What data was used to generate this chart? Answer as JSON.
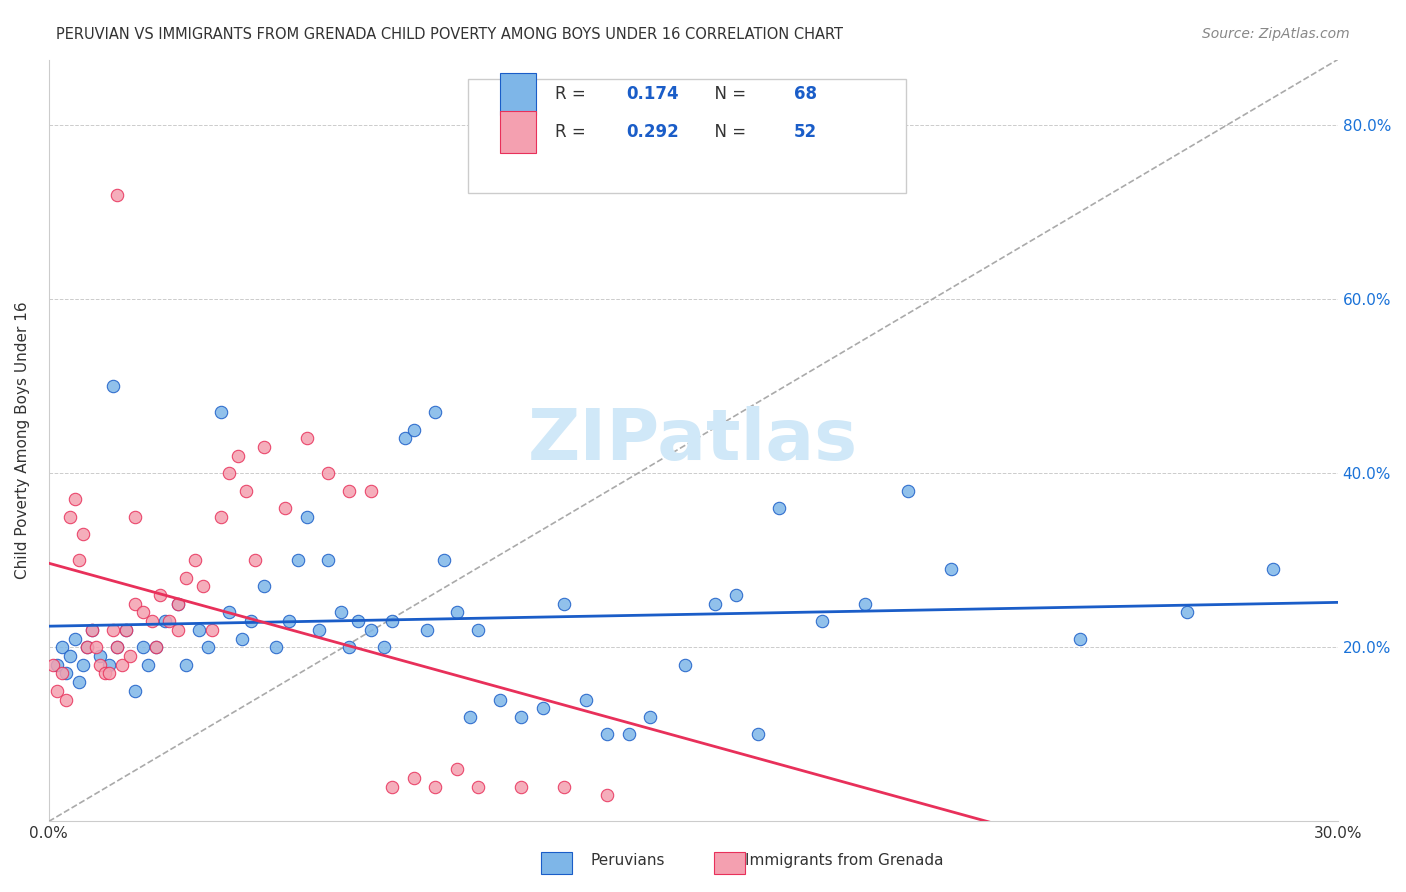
{
  "title": "PERUVIAN VS IMMIGRANTS FROM GRENADA CHILD POVERTY AMONG BOYS UNDER 16 CORRELATION CHART",
  "source": "Source: ZipAtlas.com",
  "xlabel": "",
  "ylabel": "Child Poverty Among Boys Under 16",
  "xlim": [
    0.0,
    0.3
  ],
  "ylim": [
    0.0,
    0.875
  ],
  "xticks": [
    0.0,
    0.3
  ],
  "xticklabels": [
    "0.0%",
    "30.0%"
  ],
  "right_yticks": [
    0.2,
    0.4,
    0.6,
    0.8
  ],
  "right_yticklabels": [
    "20.0%",
    "40.0%",
    "60.0%",
    "80.0%"
  ],
  "legend_r1": "R =  0.174",
  "legend_n1": "N = 68",
  "legend_r2": "R =  0.292",
  "legend_n2": "N = 52",
  "blue_color": "#7EB6E8",
  "pink_color": "#F4A0B0",
  "blue_line_color": "#1A5DC8",
  "pink_line_color": "#E8305A",
  "watermark": "ZIPatlas",
  "watermark_color": "#D0E8F8",
  "blue_scatter_x": [
    0.002,
    0.003,
    0.004,
    0.005,
    0.006,
    0.007,
    0.008,
    0.009,
    0.01,
    0.012,
    0.014,
    0.015,
    0.016,
    0.018,
    0.02,
    0.022,
    0.023,
    0.025,
    0.027,
    0.03,
    0.032,
    0.035,
    0.037,
    0.04,
    0.042,
    0.045,
    0.047,
    0.05,
    0.053,
    0.056,
    0.058,
    0.06,
    0.063,
    0.065,
    0.068,
    0.07,
    0.072,
    0.075,
    0.078,
    0.08,
    0.083,
    0.085,
    0.088,
    0.09,
    0.092,
    0.095,
    0.098,
    0.1,
    0.105,
    0.11,
    0.115,
    0.12,
    0.125,
    0.13,
    0.135,
    0.14,
    0.148,
    0.155,
    0.16,
    0.165,
    0.17,
    0.18,
    0.19,
    0.2,
    0.21,
    0.24,
    0.265,
    0.285
  ],
  "blue_scatter_y": [
    0.18,
    0.2,
    0.17,
    0.19,
    0.21,
    0.16,
    0.18,
    0.2,
    0.22,
    0.19,
    0.18,
    0.5,
    0.2,
    0.22,
    0.15,
    0.2,
    0.18,
    0.2,
    0.23,
    0.25,
    0.18,
    0.22,
    0.2,
    0.47,
    0.24,
    0.21,
    0.23,
    0.27,
    0.2,
    0.23,
    0.3,
    0.35,
    0.22,
    0.3,
    0.24,
    0.2,
    0.23,
    0.22,
    0.2,
    0.23,
    0.44,
    0.45,
    0.22,
    0.47,
    0.3,
    0.24,
    0.12,
    0.22,
    0.14,
    0.12,
    0.13,
    0.25,
    0.14,
    0.1,
    0.1,
    0.12,
    0.18,
    0.25,
    0.26,
    0.1,
    0.36,
    0.23,
    0.25,
    0.38,
    0.29,
    0.21,
    0.24,
    0.29
  ],
  "pink_scatter_x": [
    0.001,
    0.002,
    0.003,
    0.004,
    0.005,
    0.006,
    0.007,
    0.008,
    0.009,
    0.01,
    0.011,
    0.012,
    0.013,
    0.014,
    0.015,
    0.016,
    0.017,
    0.018,
    0.019,
    0.02,
    0.022,
    0.024,
    0.026,
    0.028,
    0.03,
    0.032,
    0.034,
    0.036,
    0.038,
    0.04,
    0.042,
    0.044,
    0.046,
    0.048,
    0.05,
    0.055,
    0.06,
    0.065,
    0.07,
    0.075,
    0.08,
    0.085,
    0.09,
    0.095,
    0.1,
    0.11,
    0.12,
    0.13,
    0.016,
    0.02,
    0.025,
    0.03
  ],
  "pink_scatter_y": [
    0.18,
    0.15,
    0.17,
    0.14,
    0.35,
    0.37,
    0.3,
    0.33,
    0.2,
    0.22,
    0.2,
    0.18,
    0.17,
    0.17,
    0.22,
    0.2,
    0.18,
    0.22,
    0.19,
    0.25,
    0.24,
    0.23,
    0.26,
    0.23,
    0.25,
    0.28,
    0.3,
    0.27,
    0.22,
    0.35,
    0.4,
    0.42,
    0.38,
    0.3,
    0.43,
    0.36,
    0.44,
    0.4,
    0.38,
    0.38,
    0.04,
    0.05,
    0.04,
    0.06,
    0.04,
    0.04,
    0.04,
    0.03,
    0.72,
    0.35,
    0.2,
    0.22
  ]
}
